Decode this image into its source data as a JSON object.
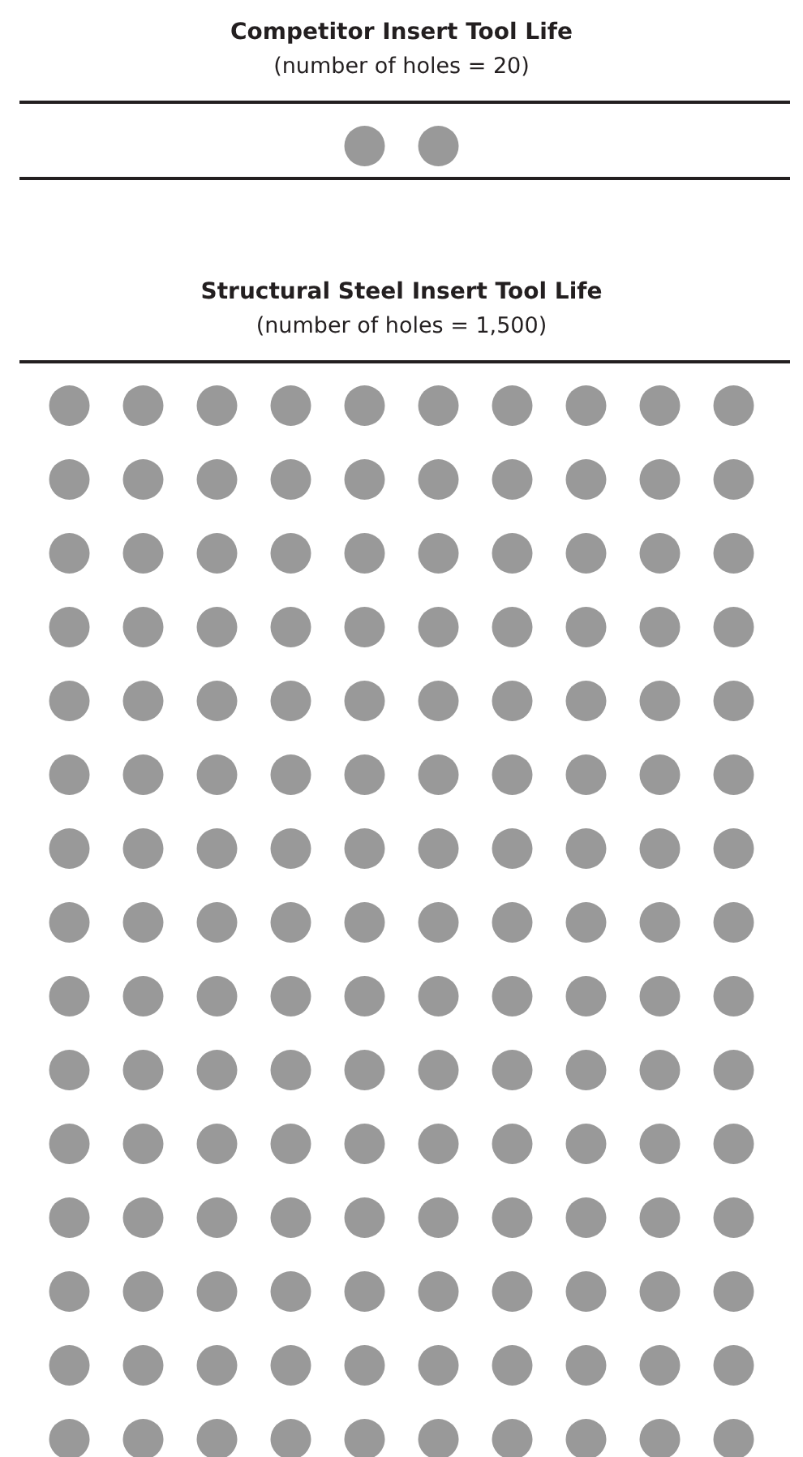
{
  "chart_data": [
    {
      "type": "other",
      "title": "Competitor Insert Tool Life",
      "values": [
        20
      ],
      "value_labels": [
        "(number of holes = 20)"
      ],
      "color": "#999999"
    },
    {
      "type": "other",
      "title": "Structural Steel Insert Tool Life",
      "values": [
        1500
      ],
      "value_labels": [
        "(number of holes = 1,500)"
      ],
      "color": "#999999"
    }
  ]
}
